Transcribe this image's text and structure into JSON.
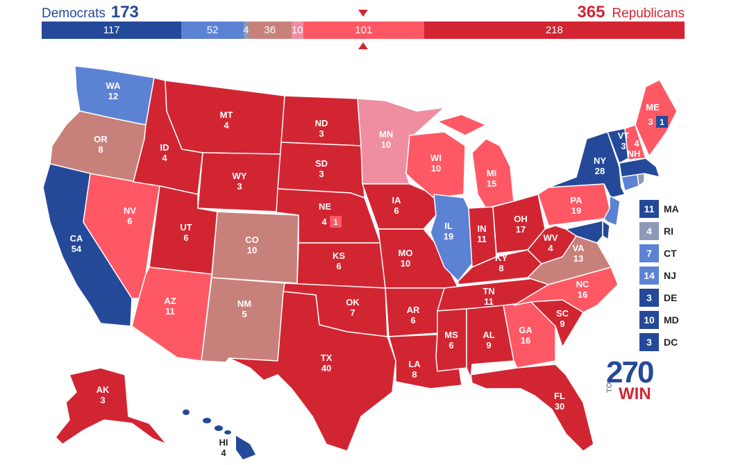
{
  "header": {
    "dem_label": "Democrats",
    "dem_total": "173",
    "rep_total": "365",
    "rep_label": "Republicans"
  },
  "bar": [
    {
      "value": 117,
      "label": "117",
      "color": "#244999"
    },
    {
      "value": 52,
      "label": "52",
      "color": "#5c82d4"
    },
    {
      "value": 4,
      "label": "4",
      "color": "#8e98b9"
    },
    {
      "value": 36,
      "label": "36",
      "color": "#c8817a"
    },
    {
      "value": 10,
      "label": "10",
      "color": "#ee8ea0"
    },
    {
      "value": 101,
      "label": "101",
      "color": "#ff5865"
    },
    {
      "value": 218,
      "label": "218",
      "color": "#d22532"
    }
  ],
  "colors": {
    "safe_d": "#244999",
    "likely_d": "#5c82d4",
    "lean_d": "#8e98b9",
    "tossup": "#c8817a",
    "tilt_r": "#ee8ea0",
    "likely_r": "#ff5865",
    "safe_r": "#d22532"
  },
  "states": {
    "WA": {
      "name": "WA",
      "ev": "12"
    },
    "OR": {
      "name": "OR",
      "ev": "8"
    },
    "CA": {
      "name": "CA",
      "ev": "54"
    },
    "ID": {
      "name": "ID",
      "ev": "4"
    },
    "NV": {
      "name": "NV",
      "ev": "6"
    },
    "MT": {
      "name": "MT",
      "ev": "4"
    },
    "WY": {
      "name": "WY",
      "ev": "3"
    },
    "UT": {
      "name": "UT",
      "ev": "6"
    },
    "AZ": {
      "name": "AZ",
      "ev": "11"
    },
    "CO": {
      "name": "CO",
      "ev": "10"
    },
    "NM": {
      "name": "NM",
      "ev": "5"
    },
    "ND": {
      "name": "ND",
      "ev": "3"
    },
    "SD": {
      "name": "SD",
      "ev": "3"
    },
    "NE": {
      "name": "NE",
      "ev": "4"
    },
    "NE_split": "1",
    "KS": {
      "name": "KS",
      "ev": "6"
    },
    "OK": {
      "name": "OK",
      "ev": "7"
    },
    "TX": {
      "name": "TX",
      "ev": "40"
    },
    "MN": {
      "name": "MN",
      "ev": "10"
    },
    "IA": {
      "name": "IA",
      "ev": "6"
    },
    "MO": {
      "name": "MO",
      "ev": "10"
    },
    "AR": {
      "name": "AR",
      "ev": "6"
    },
    "LA": {
      "name": "LA",
      "ev": "8"
    },
    "WI": {
      "name": "WI",
      "ev": "10"
    },
    "IL": {
      "name": "IL",
      "ev": "19"
    },
    "MI": {
      "name": "MI",
      "ev": "15"
    },
    "IN": {
      "name": "IN",
      "ev": "11"
    },
    "OH": {
      "name": "OH",
      "ev": "17"
    },
    "KY": {
      "name": "KY",
      "ev": "8"
    },
    "TN": {
      "name": "TN",
      "ev": "11"
    },
    "MS": {
      "name": "MS",
      "ev": "6"
    },
    "AL": {
      "name": "AL",
      "ev": "9"
    },
    "GA": {
      "name": "GA",
      "ev": "16"
    },
    "FL": {
      "name": "FL",
      "ev": "30"
    },
    "SC": {
      "name": "SC",
      "ev": "9"
    },
    "NC": {
      "name": "NC",
      "ev": "16"
    },
    "VA": {
      "name": "VA",
      "ev": "13"
    },
    "WV": {
      "name": "WV",
      "ev": "4"
    },
    "PA": {
      "name": "PA",
      "ev": "19"
    },
    "NY": {
      "name": "NY",
      "ev": "28"
    },
    "VT": {
      "name": "VT",
      "ev": "3"
    },
    "NH": {
      "name": "NH",
      "ev": "4"
    },
    "ME": {
      "name": "ME",
      "ev": "3"
    },
    "ME_split": "1",
    "AK": {
      "name": "AK",
      "ev": "3"
    },
    "HI": {
      "name": "HI",
      "ev": "4"
    }
  },
  "legend": [
    {
      "ev": "11",
      "state": "MA",
      "color": "#244999"
    },
    {
      "ev": "4",
      "state": "RI",
      "color": "#8e98b9"
    },
    {
      "ev": "7",
      "state": "CT",
      "color": "#5c82d4"
    },
    {
      "ev": "14",
      "state": "NJ",
      "color": "#5c82d4"
    },
    {
      "ev": "3",
      "state": "DE",
      "color": "#244999"
    },
    {
      "ev": "10",
      "state": "MD",
      "color": "#244999"
    },
    {
      "ev": "3",
      "state": "DC",
      "color": "#244999"
    }
  ],
  "logo": {
    "number": "270",
    "to": "TO",
    "win": "WIN"
  }
}
